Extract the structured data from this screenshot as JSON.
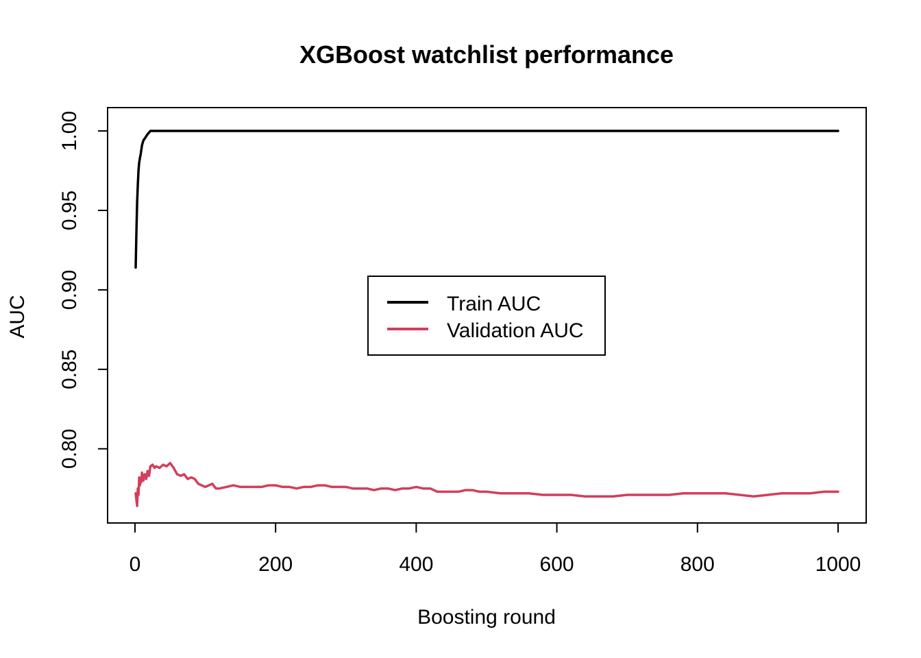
{
  "chart_data": {
    "type": "line",
    "title": "XGBoost watchlist performance",
    "xlabel": "Boosting round",
    "ylabel": "AUC",
    "xlim": [
      1,
      1000
    ],
    "ylim": [
      0.763,
      1.005
    ],
    "x_ticks": [
      0,
      200,
      400,
      600,
      800,
      1000
    ],
    "x_tick_labels": [
      "0",
      "200",
      "400",
      "600",
      "800",
      "1000"
    ],
    "y_ticks": [
      0.8,
      0.85,
      0.9,
      0.95,
      1.0
    ],
    "y_tick_labels": [
      "0.80",
      "0.85",
      "0.90",
      "0.95",
      "1.00"
    ],
    "grid": false,
    "legend": {
      "position": "center",
      "entries": [
        "Train AUC",
        "Validation AUC"
      ]
    },
    "series": [
      {
        "name": "Train AUC",
        "color": "#000000",
        "x": [
          1,
          2,
          3,
          4,
          5,
          6,
          7,
          8,
          10,
          12,
          15,
          18,
          20,
          22,
          25,
          30,
          50,
          100,
          200,
          300,
          400,
          500,
          600,
          700,
          800,
          900,
          1000
        ],
        "y": [
          0.914,
          0.935,
          0.955,
          0.966,
          0.975,
          0.98,
          0.983,
          0.985,
          0.991,
          0.994,
          0.996,
          0.998,
          0.999,
          1.0,
          1.0,
          1.0,
          1.0,
          1.0,
          1.0,
          1.0,
          1.0,
          1.0,
          1.0,
          1.0,
          1.0,
          1.0,
          1.0
        ]
      },
      {
        "name": "Validation AUC",
        "color": "#D33E5C",
        "x": [
          1,
          2,
          3,
          4,
          5,
          6,
          7,
          8,
          9,
          10,
          12,
          14,
          16,
          18,
          20,
          22,
          25,
          28,
          30,
          35,
          40,
          45,
          50,
          55,
          60,
          65,
          70,
          75,
          80,
          85,
          90,
          95,
          100,
          105,
          110,
          115,
          120,
          130,
          140,
          150,
          160,
          170,
          180,
          190,
          200,
          210,
          220,
          230,
          240,
          250,
          260,
          270,
          280,
          290,
          300,
          310,
          320,
          330,
          340,
          350,
          360,
          370,
          380,
          390,
          400,
          410,
          420,
          430,
          440,
          450,
          460,
          470,
          480,
          490,
          500,
          520,
          540,
          560,
          580,
          600,
          620,
          640,
          660,
          670,
          680,
          700,
          720,
          740,
          760,
          780,
          800,
          820,
          840,
          860,
          880,
          900,
          920,
          940,
          960,
          980,
          1000
        ],
        "y": [
          0.772,
          0.768,
          0.764,
          0.775,
          0.771,
          0.782,
          0.777,
          0.781,
          0.779,
          0.785,
          0.78,
          0.784,
          0.781,
          0.786,
          0.783,
          0.789,
          0.79,
          0.788,
          0.789,
          0.788,
          0.79,
          0.789,
          0.791,
          0.788,
          0.784,
          0.783,
          0.784,
          0.781,
          0.782,
          0.781,
          0.778,
          0.777,
          0.776,
          0.777,
          0.778,
          0.775,
          0.775,
          0.776,
          0.777,
          0.776,
          0.776,
          0.776,
          0.776,
          0.777,
          0.777,
          0.776,
          0.776,
          0.775,
          0.776,
          0.776,
          0.777,
          0.777,
          0.776,
          0.776,
          0.776,
          0.775,
          0.775,
          0.775,
          0.774,
          0.775,
          0.775,
          0.774,
          0.775,
          0.775,
          0.776,
          0.775,
          0.775,
          0.773,
          0.773,
          0.773,
          0.773,
          0.774,
          0.774,
          0.773,
          0.773,
          0.772,
          0.772,
          0.772,
          0.771,
          0.771,
          0.771,
          0.77,
          0.77,
          0.77,
          0.77,
          0.771,
          0.771,
          0.771,
          0.771,
          0.772,
          0.772,
          0.772,
          0.772,
          0.771,
          0.77,
          0.771,
          0.772,
          0.772,
          0.772,
          0.773,
          0.773
        ]
      }
    ]
  }
}
